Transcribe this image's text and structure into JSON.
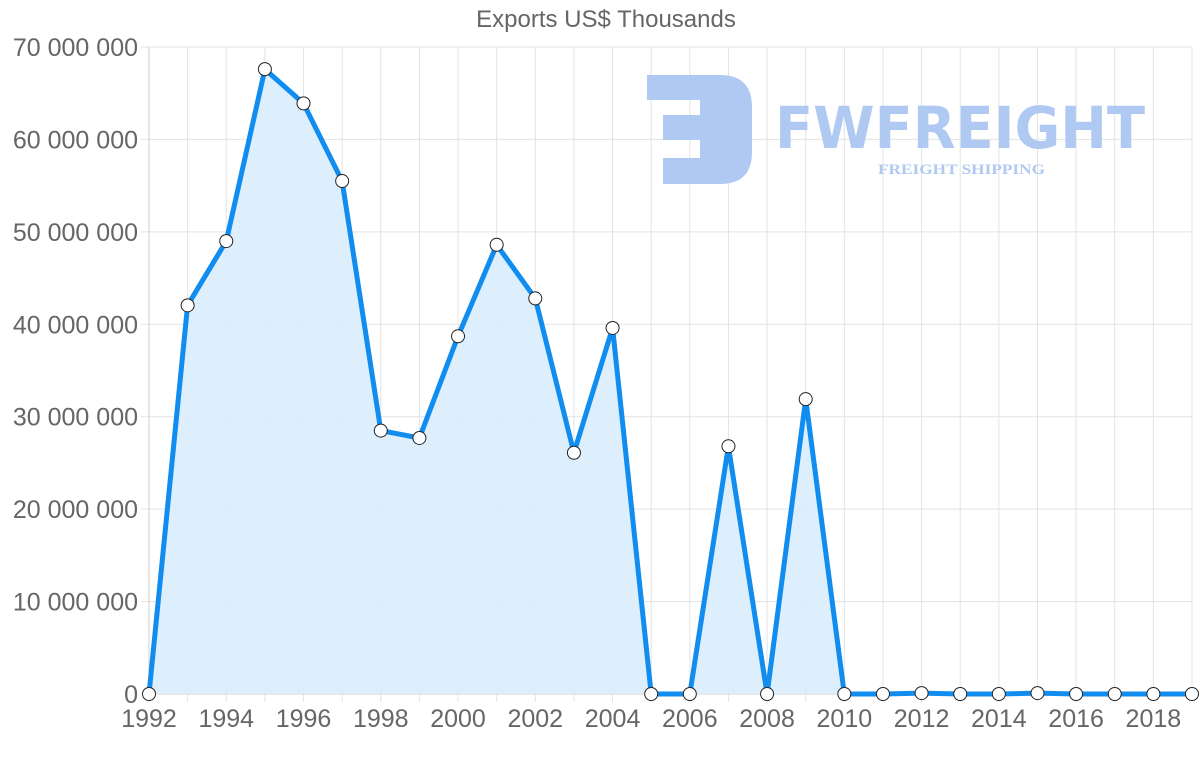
{
  "chart_data": {
    "type": "area",
    "title": "Exports US$ Thousands",
    "xlabel": "",
    "ylabel": "",
    "x": [
      1992,
      1993,
      1994,
      1995,
      1996,
      1997,
      1998,
      1999,
      2000,
      2001,
      2002,
      2003,
      2004,
      2005,
      2006,
      2007,
      2008,
      2009,
      2010,
      2011,
      2012,
      2013,
      2014,
      2015,
      2016,
      2017,
      2018,
      2019
    ],
    "series": [
      {
        "name": "Exports US$ Thousands",
        "values": [
          0,
          42050000,
          49000000,
          67600000,
          63900000,
          55500000,
          28500000,
          27700000,
          38700000,
          48600000,
          42800000,
          26100000,
          39600000,
          0,
          0,
          26800000,
          0,
          31900000,
          0,
          0,
          100000,
          0,
          0,
          100000,
          0,
          0,
          0,
          0
        ]
      }
    ],
    "ylim": [
      0,
      70000000
    ],
    "xlim": [
      1992,
      2019
    ],
    "yticks": [
      "0",
      "10 000 000",
      "20 000 000",
      "30 000 000",
      "40 000 000",
      "50 000 000",
      "60 000 000",
      "70 000 000"
    ],
    "xticks": [
      "1992",
      "1994",
      "1996",
      "1998",
      "2000",
      "2002",
      "2004",
      "2006",
      "2008",
      "2010",
      "2012",
      "2014",
      "2016",
      "2018"
    ],
    "grid": true,
    "legend": "none",
    "colors": {
      "line": "#118df0",
      "fill": "#d9ecfc",
      "grid": "#e3e3e3",
      "text": "#666666",
      "point_fill": "#ffffff",
      "point_stroke": "#222222"
    }
  },
  "watermark": {
    "brand": "FWFREIGHT",
    "tagline": "FREIGHT SHIPPING",
    "color": "#b0c9f2"
  }
}
